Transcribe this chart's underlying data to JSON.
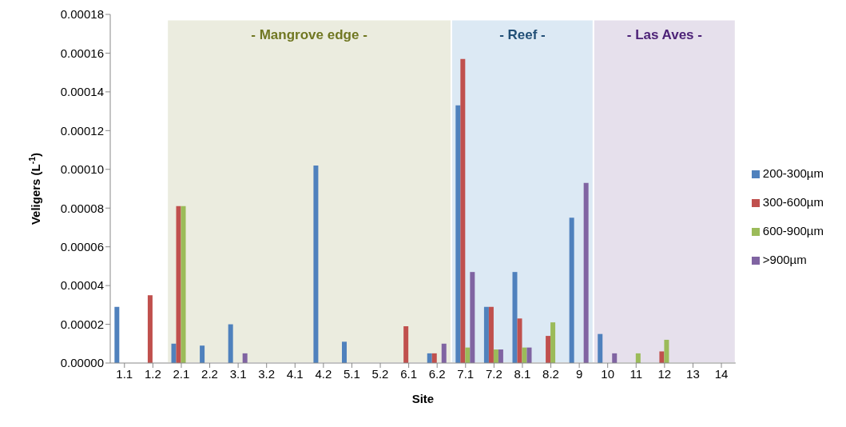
{
  "chart_data": {
    "type": "bar",
    "xlabel": "Site",
    "ylabel": "Veligers (L$^{-1}$)",
    "categories": [
      "1.1",
      "1.2",
      "2.1",
      "2.2",
      "3.1",
      "3.2",
      "4.1",
      "4.2",
      "5.1",
      "5.2",
      "6.1",
      "6.2",
      "7.1",
      "7.2",
      "8.1",
      "8.2",
      "9",
      "10",
      "11",
      "12",
      "13",
      "14"
    ],
    "series": [
      {
        "name": "200-300µm",
        "color": "#4f81bd",
        "values": [
          2.9e-05,
          0,
          1e-05,
          9e-06,
          2e-05,
          0,
          0,
          0.000102,
          1.1e-05,
          0,
          0,
          5e-06,
          0.000133,
          2.9e-05,
          4.7e-05,
          0,
          7.5e-05,
          1.5e-05,
          0,
          0,
          0,
          0
        ]
      },
      {
        "name": "300-600µm",
        "color": "#c0504d",
        "values": [
          0,
          3.5e-05,
          8.1e-05,
          0,
          0,
          0,
          0,
          0,
          0,
          0,
          1.9e-05,
          5e-06,
          0.000157,
          2.9e-05,
          2.3e-05,
          1.4e-05,
          0,
          0,
          0,
          6e-06,
          0,
          0
        ]
      },
      {
        "name": "600-900µm",
        "color": "#9bbb59",
        "values": [
          0,
          0,
          8.1e-05,
          0,
          0,
          0,
          0,
          0,
          0,
          0,
          0,
          0,
          8e-06,
          7e-06,
          8e-06,
          2.1e-05,
          0,
          0,
          5e-06,
          1.2e-05,
          0,
          0
        ]
      },
      {
        "name": ">900µm",
        "color": "#8064a2",
        "values": [
          0,
          0,
          0,
          0,
          5e-06,
          0,
          0,
          0,
          0,
          0,
          0,
          1e-05,
          4.7e-05,
          7e-06,
          8e-06,
          0,
          9.3e-05,
          5e-06,
          0,
          0,
          0,
          0
        ]
      }
    ],
    "ylim": [
      0,
      0.00018
    ],
    "yticks": [
      {
        "value": 0,
        "label": "0.00000"
      },
      {
        "value": 2e-05,
        "label": "0.00002"
      },
      {
        "value": 4e-05,
        "label": "0.00004"
      },
      {
        "value": 6e-05,
        "label": "0.00006"
      },
      {
        "value": 8e-05,
        "label": "0.00008"
      },
      {
        "value": 0.0001,
        "label": "0.00010"
      },
      {
        "value": 0.00012,
        "label": "0.00012"
      },
      {
        "value": 0.00014,
        "label": "0.00014"
      },
      {
        "value": 0.00016,
        "label": "0.00016"
      },
      {
        "value": 0.00018,
        "label": "0.00018"
      }
    ],
    "bands": [
      {
        "axis": "x",
        "from": "2.1",
        "to": "6.2",
        "label": "-    Mangrove edge    -",
        "color": "#ebecdf"
      },
      {
        "axis": "x",
        "from": "7.1",
        "to": "9",
        "label": "-  Reef  -",
        "color": "#dce9f4"
      },
      {
        "axis": "x",
        "from": "10",
        "to": "14",
        "label": "-  Las Aves  -",
        "color": "#e6e0ec"
      }
    ],
    "grid": false,
    "legend": "right"
  }
}
